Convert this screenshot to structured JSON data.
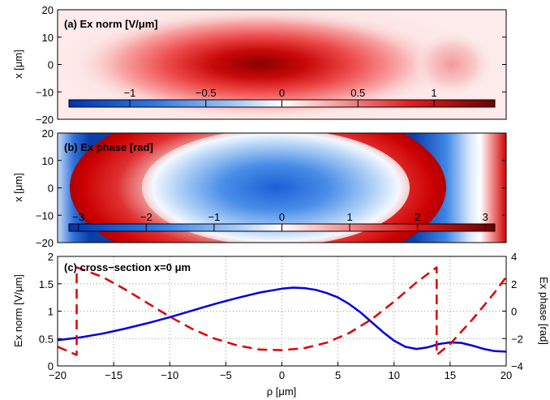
{
  "chart_data": [
    {
      "type": "heatmap",
      "title": "(a) Ex norm [V/μm]",
      "ylabel": "x [μm]",
      "xlim": [
        -20,
        20
      ],
      "ylim": [
        -20,
        20
      ],
      "yticks": [
        "20",
        "10",
        "0",
        "−10",
        "−20"
      ],
      "colorbar": {
        "range": [
          -1.4,
          1.4
        ],
        "ticks": [
          {
            "value": -1,
            "label": "−1"
          },
          {
            "value": -0.5,
            "label": "−0.5"
          },
          {
            "value": 0,
            "label": "0"
          },
          {
            "value": 0.5,
            "label": "0.5"
          },
          {
            "value": 1,
            "label": "1"
          }
        ]
      },
      "colors": {
        "low": "#0033b3",
        "mid": "#ffffff",
        "high": "#6e0000"
      }
    },
    {
      "type": "heatmap",
      "title": "(b) Ex phase [rad]",
      "ylabel": "x [μm]",
      "xlim": [
        -20,
        20
      ],
      "ylim": [
        -20,
        20
      ],
      "yticks": [
        "20",
        "10",
        "0",
        "−10",
        "−20"
      ],
      "colorbar": {
        "range": [
          -3.14,
          3.14
        ],
        "ticks": [
          {
            "value": -3,
            "label": "−3"
          },
          {
            "value": -2,
            "label": "−2"
          },
          {
            "value": -1,
            "label": "−1"
          },
          {
            "value": 0,
            "label": "0"
          },
          {
            "value": 1,
            "label": "1"
          },
          {
            "value": 2,
            "label": "2"
          },
          {
            "value": 3,
            "label": "3"
          }
        ]
      },
      "colors": {
        "low": "#0033b3",
        "mid": "#ffffff",
        "high": "#6e0000"
      }
    },
    {
      "type": "line",
      "title": "(c) cross−section x=0 μm",
      "xlabel": "ρ [μm]",
      "ylabel": "Ex norm [V/μm]",
      "ylabel_right": "Ex phase [rad]",
      "xlim": [
        -20,
        20
      ],
      "ylim": [
        0,
        2
      ],
      "ylim_right": [
        -4,
        4
      ],
      "xticks": [
        "−20",
        "−15",
        "−10",
        "−5",
        "0",
        "5",
        "10",
        "15",
        "20"
      ],
      "yticks": [
        "2",
        "1.5",
        "1",
        "0.5",
        "0"
      ],
      "yticks_right": [
        "4",
        "2",
        "0",
        "−2",
        "−4"
      ],
      "grid": true,
      "series": [
        {
          "axis": "left",
          "style": "solid",
          "color": "#0000dd",
          "x": [
            -20,
            -18,
            -16,
            -14,
            -12,
            -10,
            -8,
            -6,
            -4,
            -2,
            0,
            1,
            2,
            3,
            4,
            5,
            6,
            7,
            8,
            9,
            10,
            11,
            12,
            13,
            14,
            15,
            16,
            17,
            18,
            19,
            20
          ],
          "y": [
            0.47,
            0.52,
            0.59,
            0.68,
            0.78,
            0.89,
            1.01,
            1.13,
            1.24,
            1.34,
            1.41,
            1.43,
            1.42,
            1.39,
            1.33,
            1.25,
            1.13,
            0.98,
            0.8,
            0.62,
            0.46,
            0.35,
            0.31,
            0.34,
            0.4,
            0.43,
            0.42,
            0.37,
            0.31,
            0.27,
            0.26
          ]
        },
        {
          "axis": "right",
          "style": "dashed",
          "color": "#dd0000",
          "x": [
            -20,
            -18.3,
            -18.3,
            -16,
            -14,
            -12,
            -10,
            -8,
            -6,
            -4,
            -2,
            0,
            2,
            4,
            6,
            8,
            10,
            12,
            13.8,
            13.8,
            15,
            16,
            17,
            18,
            19,
            20
          ],
          "y": [
            -2.6,
            -3.2,
            3.2,
            2.5,
            1.6,
            0.6,
            -0.4,
            -1.3,
            -2.0,
            -2.5,
            -2.8,
            -2.85,
            -2.7,
            -2.3,
            -1.6,
            -0.6,
            0.7,
            2.1,
            3.2,
            -3.2,
            -2.4,
            -1.5,
            -0.6,
            0.4,
            1.4,
            2.5
          ]
        }
      ]
    }
  ]
}
